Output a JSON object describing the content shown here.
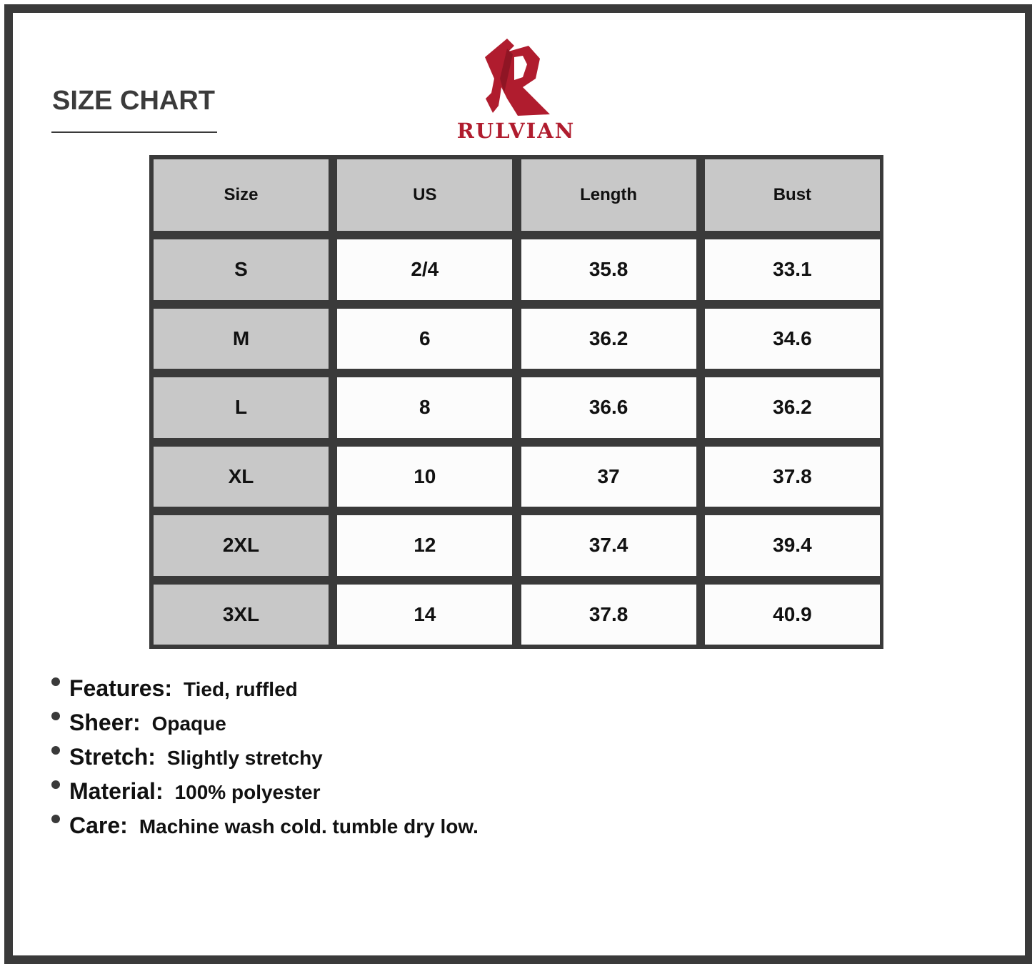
{
  "header": {
    "title": "SIZE CHART",
    "brand": "RULVIAN",
    "brand_color": "#b01c2e"
  },
  "table": {
    "columns": [
      "Size",
      "US",
      "Length",
      "Bust"
    ],
    "rows": [
      [
        "S",
        "2/4",
        "35.8",
        "33.1"
      ],
      [
        "M",
        "6",
        "36.2",
        "34.6"
      ],
      [
        "L",
        "8",
        "36.6",
        "36.2"
      ],
      [
        "XL",
        "10",
        "37",
        "37.8"
      ],
      [
        "2XL",
        "12",
        "37.4",
        "39.4"
      ],
      [
        "3XL",
        "14",
        "37.8",
        "40.9"
      ]
    ]
  },
  "details": [
    {
      "label": "Features:",
      "value": "Tied, ruffled"
    },
    {
      "label": "Sheer:",
      "value": "Opaque"
    },
    {
      "label": "Stretch:",
      "value": "Slightly stretchy"
    },
    {
      "label": "Material:",
      "value": "100% polyester"
    },
    {
      "label": "Care:",
      "value": "Machine wash cold. tumble dry low."
    }
  ]
}
